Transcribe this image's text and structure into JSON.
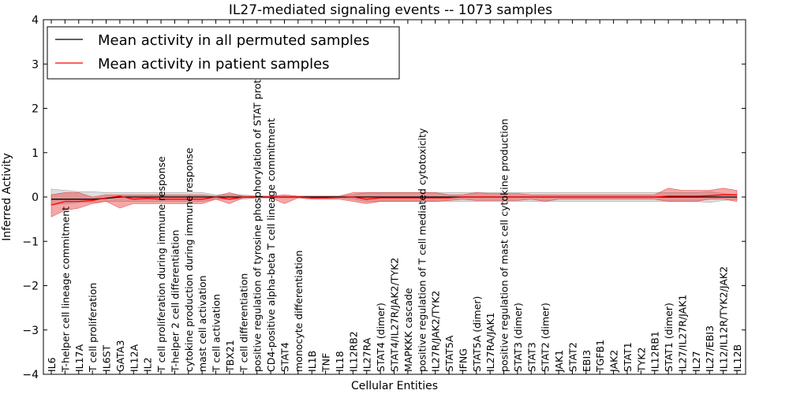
{
  "chart_data": {
    "type": "line",
    "title": "IL27-mediated signaling events -- 1073 samples",
    "xlabel": "Cellular Entities",
    "ylabel": "Inferred Activity",
    "ylim": [
      -4,
      4
    ],
    "yticks": [
      "−4",
      "−3",
      "−2",
      "−1",
      "0",
      "1",
      "2",
      "3",
      "4"
    ],
    "legend_position": "top-left",
    "categories": [
      "IL6",
      "T-helper cell lineage commitment",
      "IL17A",
      "T cell proliferation",
      "IL6ST",
      "GATA3",
      "IL12A",
      "IL2",
      "T cell proliferation during immune response",
      "T-helper 2 cell differentiation",
      "cytokine production during immune response",
      "mast cell activation",
      "T cell activation",
      "TBX21",
      "T cell differentiation",
      "positive regulation of tyrosine phosphorylation of STAT protein",
      "CD4-positive alpha-beta T cell lineage commitment",
      "STAT4",
      "monocyte differentiation",
      "IL1B",
      "TNF",
      "IL18",
      "IL12RB2",
      "IL27RA",
      "STAT4 (dimer)",
      "STAT4/IL27R/JAK2/TYK2",
      "MAPKKK cascade",
      "positive regulation of T cell mediated cytotoxicity",
      "IL27R/JAK2/TYK2",
      "STAT5A",
      "IFNG",
      "STAT5A (dimer)",
      "IL27RA/JAK1",
      "positive regulation of mast cell cytokine production",
      "STAT3 (dimer)",
      "STAT3",
      "STAT2 (dimer)",
      "JAK1",
      "STAT2",
      "EBI3",
      "TGFB1",
      "JAK2",
      "STAT1",
      "TYK2",
      "IL12RB1",
      "STAT1 (dimer)",
      "IL27/IL27R/JAK1",
      "IL27",
      "IL27/EBI3",
      "IL12/IL12R/TYK2/JAK2",
      "IL12B"
    ],
    "series": [
      {
        "name": "Mean activity in all permuted samples",
        "color": "#000000",
        "values": [
          -0.05,
          -0.05,
          -0.05,
          -0.05,
          -0.03,
          0.0,
          0.0,
          0.0,
          0.0,
          0.0,
          0.0,
          0.0,
          0.0,
          0.0,
          0.0,
          0.0,
          0.0,
          0.0,
          0.0,
          0.0,
          0.0,
          0.0,
          0.0,
          0.0,
          0.0,
          0.0,
          0.0,
          0.0,
          0.0,
          0.0,
          0.0,
          0.0,
          0.0,
          0.0,
          0.0,
          0.0,
          0.0,
          0.0,
          0.0,
          0.0,
          0.0,
          0.0,
          0.0,
          0.0,
          0.0,
          0.0,
          0.0,
          0.0,
          0.0,
          0.0,
          0.0
        ],
        "band_lower": [
          -0.18,
          -0.15,
          -0.12,
          -0.12,
          -0.1,
          -0.1,
          -0.1,
          -0.1,
          -0.1,
          -0.1,
          -0.1,
          -0.1,
          -0.05,
          -0.05,
          -0.05,
          -0.02,
          -0.02,
          -0.02,
          -0.02,
          -0.02,
          -0.02,
          -0.02,
          -0.05,
          -0.1,
          -0.1,
          -0.1,
          -0.1,
          -0.1,
          -0.1,
          -0.1,
          -0.1,
          -0.1,
          -0.1,
          -0.1,
          -0.1,
          -0.1,
          -0.1,
          -0.1,
          -0.1,
          -0.1,
          -0.1,
          -0.1,
          -0.1,
          -0.1,
          -0.1,
          -0.1,
          -0.1,
          -0.1,
          -0.12,
          -0.08,
          -0.05
        ],
        "band_upper": [
          0.18,
          0.15,
          0.12,
          0.12,
          0.1,
          0.1,
          0.1,
          0.1,
          0.1,
          0.1,
          0.1,
          0.1,
          0.05,
          0.05,
          0.05,
          0.02,
          0.02,
          0.02,
          0.02,
          0.02,
          0.02,
          0.02,
          0.05,
          0.1,
          0.1,
          0.1,
          0.1,
          0.1,
          0.1,
          0.1,
          0.1,
          0.1,
          0.1,
          0.1,
          0.1,
          0.1,
          0.1,
          0.1,
          0.1,
          0.1,
          0.1,
          0.1,
          0.1,
          0.1,
          0.1,
          0.1,
          0.1,
          0.1,
          0.12,
          0.08,
          0.05
        ]
      },
      {
        "name": "Mean activity in patient samples",
        "color": "#ff0000",
        "values": [
          -0.18,
          -0.1,
          -0.1,
          -0.08,
          -0.02,
          0.02,
          -0.05,
          -0.03,
          -0.05,
          -0.05,
          -0.05,
          -0.05,
          0.0,
          -0.05,
          0.0,
          0.0,
          0.0,
          0.0,
          0.0,
          -0.02,
          -0.02,
          -0.01,
          0.0,
          -0.05,
          -0.02,
          -0.02,
          -0.02,
          -0.02,
          -0.02,
          -0.02,
          0.0,
          0.0,
          0.0,
          0.0,
          0.0,
          0.0,
          0.0,
          0.0,
          0.0,
          0.0,
          0.0,
          0.0,
          0.0,
          0.0,
          0.0,
          0.02,
          0.02,
          0.02,
          0.03,
          0.05,
          0.05
        ],
        "band_lower": [
          -0.45,
          -0.3,
          -0.25,
          -0.15,
          -0.1,
          -0.25,
          -0.15,
          -0.15,
          -0.15,
          -0.15,
          -0.15,
          -0.15,
          -0.05,
          -0.15,
          -0.02,
          -0.02,
          -0.02,
          -0.15,
          -0.02,
          -0.05,
          -0.05,
          -0.05,
          -0.1,
          -0.15,
          -0.1,
          -0.1,
          -0.1,
          -0.1,
          -0.1,
          -0.08,
          -0.05,
          -0.08,
          -0.08,
          -0.08,
          -0.08,
          -0.05,
          -0.1,
          -0.05,
          -0.05,
          -0.05,
          -0.05,
          -0.05,
          -0.05,
          -0.05,
          -0.05,
          -0.1,
          -0.1,
          -0.1,
          -0.05,
          -0.05,
          -0.1
        ],
        "band_upper": [
          0.05,
          0.1,
          0.1,
          0.0,
          0.05,
          0.05,
          0.05,
          0.05,
          0.05,
          0.05,
          0.05,
          0.05,
          0.02,
          0.1,
          0.02,
          0.02,
          0.02,
          0.05,
          0.02,
          0.02,
          0.02,
          0.02,
          0.1,
          0.1,
          0.1,
          0.1,
          0.1,
          0.1,
          0.1,
          0.05,
          0.05,
          0.1,
          0.08,
          0.08,
          0.08,
          0.05,
          0.05,
          0.05,
          0.05,
          0.05,
          0.05,
          0.05,
          0.05,
          0.05,
          0.05,
          0.2,
          0.15,
          0.15,
          0.15,
          0.2,
          0.15
        ]
      }
    ]
  }
}
